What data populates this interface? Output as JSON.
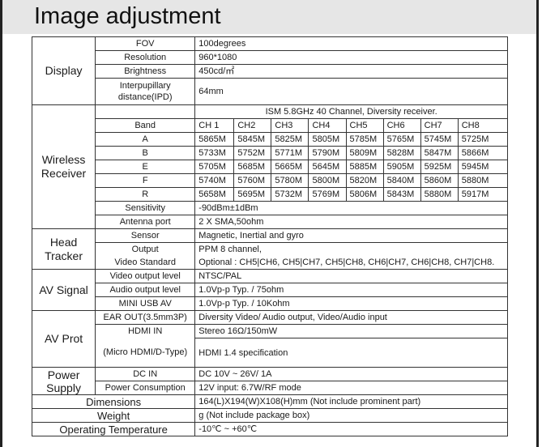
{
  "title": "Image adjustment",
  "display": {
    "category": "Display",
    "rows": [
      {
        "label": "FOV",
        "value": "100degrees"
      },
      {
        "label": "Resolution",
        "value": "960*1080"
      },
      {
        "label": "Brightness",
        "value": "450cd/㎡"
      },
      {
        "label": "Interpupillary distance(IPD)",
        "value": "64mm"
      }
    ]
  },
  "wireless": {
    "category": "Wireless Receiver",
    "summary": "ISM 5.8GHz 40 Channel, Diversity receiver.",
    "band_label": "Band",
    "channels": [
      "CH 1",
      "CH2",
      "CH3",
      "CH4",
      "CH5",
      "CH6",
      "CH7",
      "CH8"
    ],
    "bands": [
      {
        "name": "A",
        "freqs": [
          "5865M",
          "5845M",
          "5825M",
          "5805M",
          "5785M",
          "5765M",
          "5745M",
          "5725M"
        ]
      },
      {
        "name": "B",
        "freqs": [
          "5733M",
          "5752M",
          "5771M",
          "5790M",
          "5809M",
          "5828M",
          "5847M",
          "5866M"
        ]
      },
      {
        "name": "E",
        "freqs": [
          "5705M",
          "5685M",
          "5665M",
          "5645M",
          "5885M",
          "5905M",
          "5925M",
          "5945M"
        ]
      },
      {
        "name": "F",
        "freqs": [
          "5740M",
          "5760M",
          "5780M",
          "5800M",
          "5820M",
          "5840M",
          "5860M",
          "5880M"
        ]
      },
      {
        "name": "R",
        "freqs": [
          "5658M",
          "5695M",
          "5732M",
          "5769M",
          "5806M",
          "5843M",
          "5880M",
          "5917M"
        ]
      }
    ],
    "sensitivity": {
      "label": "Sensitivity",
      "value": "-90dBm±1dBm"
    },
    "antenna": {
      "label": "Antenna port",
      "value": "2 X SMA,50ohm"
    }
  },
  "head_tracker": {
    "category": "Head Tracker",
    "sensor": {
      "label": "Sensor",
      "value": "Magnetic, Inertial and gyro"
    },
    "output_label": "Output",
    "video_standard_label": "Video Standard",
    "output_value": "PPM 8 channel,",
    "optional_value": "Optional : CH5|CH6, CH5|CH7, CH5|CH8, CH6|CH7, CH6|CH8, CH7|CH8."
  },
  "av_signal": {
    "category": "AV Signal",
    "rows": [
      {
        "label": "Video output level",
        "value": "NTSC/PAL"
      },
      {
        "label": "Audio output level",
        "value": "1.0Vp-p Typ. / 75ohm"
      },
      {
        "label": "MINI USB AV",
        "value": "1.0Vp-p Typ. / 10Kohm"
      }
    ]
  },
  "av_port": {
    "category": "AV Prot",
    "rows": [
      {
        "label": "EAR OUT(3.5mm3P)",
        "value": "Diversity Video/ Audio output, Video/Audio input"
      },
      {
        "label": "HDMI IN",
        "value": "Stereo 16Ω/150mW"
      },
      {
        "label": "(Micro HDMI/D-Type)",
        "value": "HDMI 1.4 specification"
      }
    ]
  },
  "power": {
    "category": "Power Supply",
    "rows": [
      {
        "label": "DC IN",
        "value": "DC 10V ~ 26V/ 1A"
      },
      {
        "label": "Power Consumption",
        "value": "12V input: 6.7W/RF mode"
      }
    ]
  },
  "dimensions": {
    "label": "Dimensions",
    "value": "164(L)X194(W)X108(H)mm (Not include prominent part)"
  },
  "weight": {
    "label": "Weight",
    "value": "g (Not include package box)"
  },
  "temperature": {
    "label": "Operating Temperature",
    "value": "-10℃ ~ +60℃"
  }
}
